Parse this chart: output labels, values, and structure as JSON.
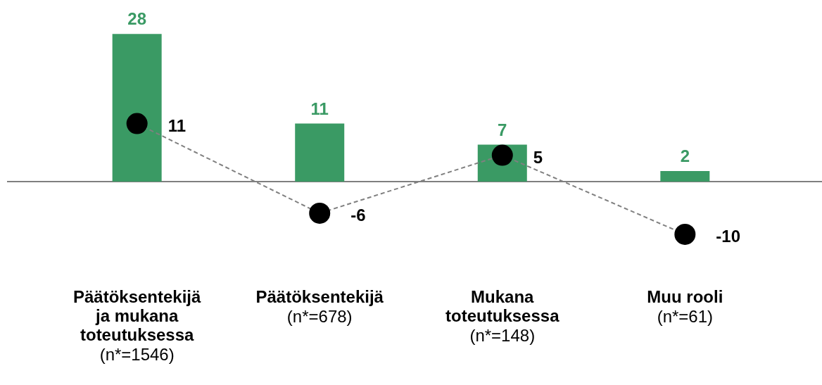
{
  "chart_data": {
    "type": "bar",
    "categories": [
      "Päätöksentekijä\nja mukana\ntoteutuksessa",
      "Päätöksentekijä",
      "Mukana\ntoteutuksessa",
      "Muu rooli"
    ],
    "annotations": [
      "(n*=1546)",
      "(n*=678)",
      "(n*=148)",
      "(n*=61)"
    ],
    "series": [
      {
        "color": "#3a9a64",
        "values": [
          28,
          11,
          7,
          2
        ]
      },
      {
        "type": "line",
        "color": "#808080",
        "values": [
          11,
          -6,
          5,
          -10
        ]
      }
    ],
    "data_labels": true,
    "marker": "circle",
    "line_style": "dashed"
  }
}
